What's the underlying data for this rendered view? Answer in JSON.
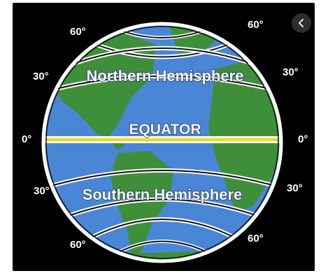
{
  "diagram": {
    "labels": {
      "northern": "Northern Hemisphere",
      "southern": "Southern Hemisphere",
      "equator": "EQUATOR"
    },
    "latitude_marks": {
      "n60_left": "60°",
      "n60_right": "60°",
      "n30_left": "30°",
      "n30_right": "30°",
      "eq_left": "0°",
      "eq_right": "0°",
      "s30_left": "30°",
      "s30_right": "30°",
      "s60_left": "60°",
      "s60_right": "60°"
    },
    "colors": {
      "ocean": "#4a86d6",
      "land": "#3f8f3a",
      "equator_line": "#e8d84a",
      "band_border": "#ffffff",
      "background": "#000000"
    },
    "controls": {
      "back_icon": "chevron-left-icon"
    }
  }
}
